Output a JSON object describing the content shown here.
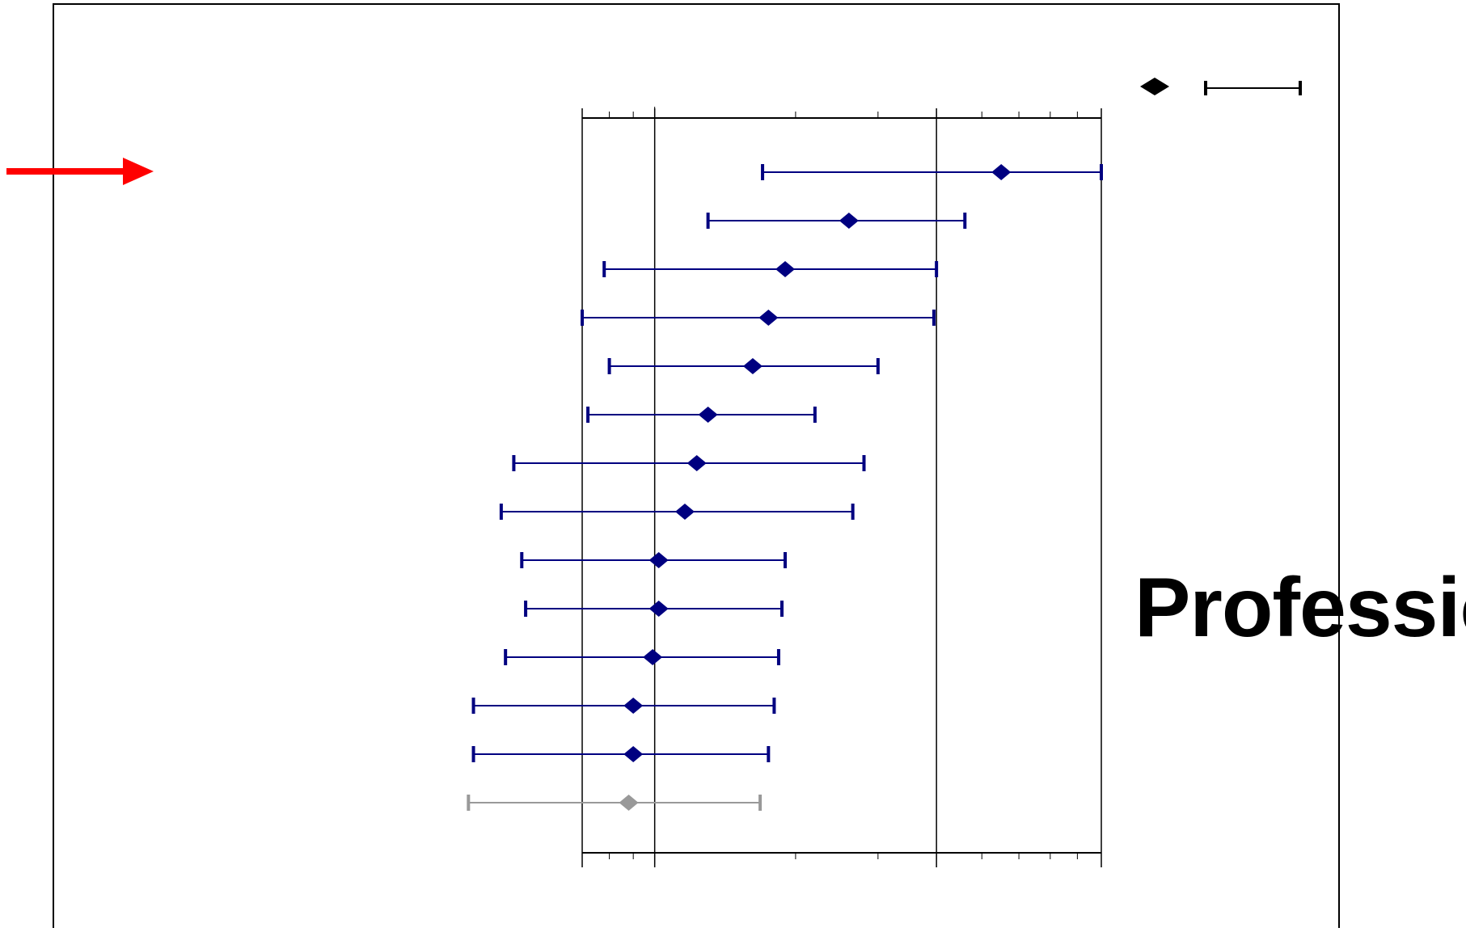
{
  "overlay": {
    "text": "Professio"
  },
  "colors": {
    "series": "#000080",
    "reference_row": "#999999",
    "arrow": "#ff0000",
    "frame": "#000000",
    "legend": "#000000"
  },
  "icons": {
    "pointer": "arrow-right-icon",
    "legend_point": "diamond-icon",
    "legend_interval": "error-bar-icon"
  },
  "chart_data": {
    "type": "forest",
    "scale": "log",
    "xlim": [
      0.7,
      9
    ],
    "reference_lines": [
      1,
      4
    ],
    "grid": false,
    "legend": "top-right",
    "highlighted_row": 0,
    "rows": [
      {
        "estimate": 5.5,
        "lower": 1.7,
        "upper": 9.0
      },
      {
        "estimate": 2.6,
        "lower": 1.3,
        "upper": 4.6
      },
      {
        "estimate": 1.9,
        "lower": 0.78,
        "upper": 4.0
      },
      {
        "estimate": 1.75,
        "lower": 0.7,
        "upper": 3.95
      },
      {
        "estimate": 1.62,
        "lower": 0.8,
        "upper": 3.0
      },
      {
        "estimate": 1.3,
        "lower": 0.72,
        "upper": 2.2
      },
      {
        "estimate": 1.23,
        "lower": 0.5,
        "upper": 2.8
      },
      {
        "estimate": 1.16,
        "lower": 0.47,
        "upper": 2.65
      },
      {
        "estimate": 1.02,
        "lower": 0.52,
        "upper": 1.9
      },
      {
        "estimate": 1.02,
        "lower": 0.53,
        "upper": 1.87
      },
      {
        "estimate": 0.99,
        "lower": 0.48,
        "upper": 1.84
      },
      {
        "estimate": 0.9,
        "lower": 0.41,
        "upper": 1.8
      },
      {
        "estimate": 0.9,
        "lower": 0.41,
        "upper": 1.75
      },
      {
        "estimate": 0.88,
        "lower": 0.4,
        "upper": 1.68,
        "reference": true
      }
    ]
  }
}
